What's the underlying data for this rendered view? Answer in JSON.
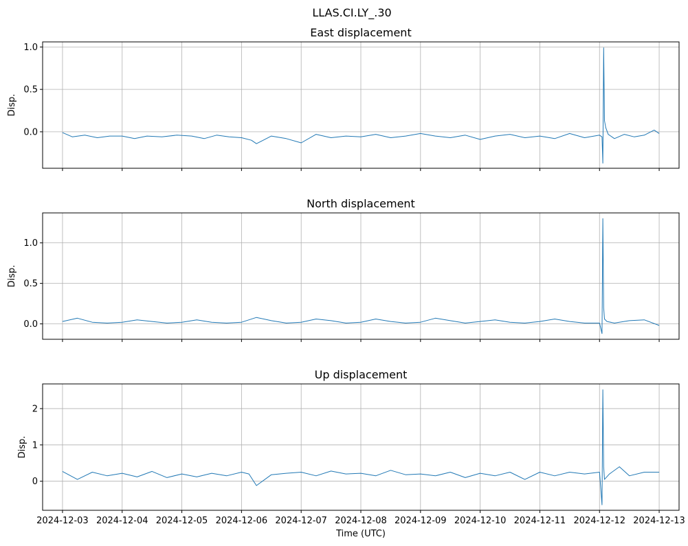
{
  "figure": {
    "title": "LLAS.CI.LY_.30"
  },
  "chart_data": [
    {
      "type": "line",
      "title": "East displacement",
      "xlabel": "",
      "ylabel": "Disp.",
      "xlim": [
        "2024-12-02T16:00",
        "2024-12-13T08:00"
      ],
      "ylim": [
        -0.43,
        1.06
      ],
      "yticks": [
        0.0,
        0.5,
        1.0
      ],
      "yticklabels": [
        "0.0",
        "0.5",
        "1.0"
      ],
      "grid": true,
      "color": "#1f77b4",
      "series": [
        {
          "x": [
            "2024-12-03T00:00",
            "2024-12-03T04:00",
            "2024-12-03T09:00",
            "2024-12-03T14:00",
            "2024-12-03T19:00",
            "2024-12-04T00:00",
            "2024-12-04T05:00",
            "2024-12-04T10:00",
            "2024-12-04T16:00",
            "2024-12-04T22:00",
            "2024-12-05T04:00",
            "2024-12-05T09:00",
            "2024-12-05T14:00",
            "2024-12-05T19:00",
            "2024-12-06T00:00",
            "2024-12-06T04:00",
            "2024-12-06T06:00",
            "2024-12-06T12:00",
            "2024-12-06T18:00",
            "2024-12-07T00:00",
            "2024-12-07T06:00",
            "2024-12-07T12:00",
            "2024-12-07T18:00",
            "2024-12-08T00:00",
            "2024-12-08T06:00",
            "2024-12-08T12:00",
            "2024-12-08T18:00",
            "2024-12-09T00:00",
            "2024-12-09T06:00",
            "2024-12-09T12:00",
            "2024-12-09T18:00",
            "2024-12-10T00:00",
            "2024-12-10T06:00",
            "2024-12-10T12:00",
            "2024-12-10T18:00",
            "2024-12-11T00:00",
            "2024-12-11T06:00",
            "2024-12-11T12:00",
            "2024-12-11T18:00",
            "2024-12-12T00:00",
            "2024-12-12T01:00",
            "2024-12-12T01:20",
            "2024-12-12T01:40",
            "2024-12-12T02:00",
            "2024-12-12T02:30",
            "2024-12-12T03:30",
            "2024-12-12T06:00",
            "2024-12-12T10:00",
            "2024-12-12T14:00",
            "2024-12-12T18:00",
            "2024-12-12T22:00",
            "2024-12-13T00:00"
          ],
          "y": [
            -0.01,
            -0.06,
            -0.04,
            -0.07,
            -0.05,
            -0.05,
            -0.08,
            -0.05,
            -0.06,
            -0.04,
            -0.05,
            -0.08,
            -0.04,
            -0.06,
            -0.07,
            -0.1,
            -0.14,
            -0.05,
            -0.08,
            -0.13,
            -0.03,
            -0.07,
            -0.05,
            -0.06,
            -0.03,
            -0.07,
            -0.05,
            -0.02,
            -0.05,
            -0.07,
            -0.04,
            -0.09,
            -0.05,
            -0.03,
            -0.07,
            -0.05,
            -0.08,
            -0.02,
            -0.07,
            -0.04,
            -0.06,
            -0.37,
            0.99,
            0.13,
            0.05,
            -0.03,
            -0.08,
            -0.03,
            -0.06,
            -0.04,
            0.02,
            -0.02
          ]
        }
      ]
    },
    {
      "type": "line",
      "title": "North displacement",
      "xlabel": "",
      "ylabel": "Disp.",
      "xlim": [
        "2024-12-02T16:00",
        "2024-12-13T08:00"
      ],
      "ylim": [
        -0.19,
        1.37
      ],
      "yticks": [
        0.0,
        0.5,
        1.0
      ],
      "yticklabels": [
        "0.0",
        "0.5",
        "1.0"
      ],
      "grid": true,
      "color": "#1f77b4",
      "series": [
        {
          "x": [
            "2024-12-03T00:00",
            "2024-12-03T06:00",
            "2024-12-03T12:00",
            "2024-12-03T18:00",
            "2024-12-04T00:00",
            "2024-12-04T06:00",
            "2024-12-04T12:00",
            "2024-12-04T18:00",
            "2024-12-05T00:00",
            "2024-12-05T06:00",
            "2024-12-05T12:00",
            "2024-12-05T18:00",
            "2024-12-06T00:00",
            "2024-12-06T06:00",
            "2024-12-06T12:00",
            "2024-12-06T18:00",
            "2024-12-07T00:00",
            "2024-12-07T06:00",
            "2024-12-07T12:00",
            "2024-12-07T18:00",
            "2024-12-08T00:00",
            "2024-12-08T06:00",
            "2024-12-08T12:00",
            "2024-12-08T18:00",
            "2024-12-09T00:00",
            "2024-12-09T06:00",
            "2024-12-09T12:00",
            "2024-12-09T18:00",
            "2024-12-10T00:00",
            "2024-12-10T06:00",
            "2024-12-10T12:00",
            "2024-12-10T18:00",
            "2024-12-11T00:00",
            "2024-12-11T06:00",
            "2024-12-11T12:00",
            "2024-12-11T18:00",
            "2024-12-12T00:00",
            "2024-12-12T01:00",
            "2024-12-12T01:20",
            "2024-12-12T01:40",
            "2024-12-12T02:00",
            "2024-12-12T03:00",
            "2024-12-12T06:00",
            "2024-12-12T12:00",
            "2024-12-12T18:00",
            "2024-12-13T00:00"
          ],
          "y": [
            0.03,
            0.07,
            0.02,
            0.01,
            0.02,
            0.05,
            0.03,
            0.01,
            0.02,
            0.05,
            0.02,
            0.01,
            0.02,
            0.08,
            0.04,
            0.01,
            0.02,
            0.06,
            0.04,
            0.01,
            0.02,
            0.06,
            0.03,
            0.01,
            0.02,
            0.07,
            0.04,
            0.01,
            0.03,
            0.05,
            0.02,
            0.01,
            0.03,
            0.06,
            0.03,
            0.01,
            0.01,
            -0.12,
            1.3,
            0.2,
            0.06,
            0.03,
            0.01,
            0.04,
            0.05,
            -0.02
          ]
        }
      ]
    },
    {
      "type": "line",
      "title": "Up displacement",
      "xlabel": "Time (UTC)",
      "ylabel": "Disp.",
      "xlim": [
        "2024-12-02T16:00",
        "2024-12-13T08:00"
      ],
      "ylim": [
        -0.8,
        2.68
      ],
      "yticks": [
        0,
        1,
        2
      ],
      "yticklabels": [
        "0",
        "1",
        "2"
      ],
      "xticks": [
        "2024-12-03",
        "2024-12-04",
        "2024-12-05",
        "2024-12-06",
        "2024-12-07",
        "2024-12-08",
        "2024-12-09",
        "2024-12-10",
        "2024-12-11",
        "2024-12-12",
        "2024-12-13"
      ],
      "grid": true,
      "color": "#1f77b4",
      "series": [
        {
          "x": [
            "2024-12-03T00:00",
            "2024-12-03T06:00",
            "2024-12-03T12:00",
            "2024-12-03T18:00",
            "2024-12-04T00:00",
            "2024-12-04T06:00",
            "2024-12-04T12:00",
            "2024-12-04T18:00",
            "2024-12-05T00:00",
            "2024-12-05T06:00",
            "2024-12-05T12:00",
            "2024-12-05T18:00",
            "2024-12-06T00:00",
            "2024-12-06T03:00",
            "2024-12-06T06:00",
            "2024-12-06T12:00",
            "2024-12-06T18:00",
            "2024-12-07T00:00",
            "2024-12-07T06:00",
            "2024-12-07T12:00",
            "2024-12-07T18:00",
            "2024-12-08T00:00",
            "2024-12-08T06:00",
            "2024-12-08T12:00",
            "2024-12-08T18:00",
            "2024-12-09T00:00",
            "2024-12-09T06:00",
            "2024-12-09T12:00",
            "2024-12-09T18:00",
            "2024-12-10T00:00",
            "2024-12-10T06:00",
            "2024-12-10T12:00",
            "2024-12-10T18:00",
            "2024-12-11T00:00",
            "2024-12-11T06:00",
            "2024-12-11T12:00",
            "2024-12-11T18:00",
            "2024-12-12T00:00",
            "2024-12-12T01:00",
            "2024-12-12T01:20",
            "2024-12-12T01:40",
            "2024-12-12T02:00",
            "2024-12-12T04:00",
            "2024-12-12T08:00",
            "2024-12-12T12:00",
            "2024-12-12T18:00",
            "2024-12-13T00:00"
          ],
          "y": [
            0.27,
            0.05,
            0.25,
            0.15,
            0.22,
            0.12,
            0.27,
            0.1,
            0.2,
            0.12,
            0.22,
            0.15,
            0.25,
            0.2,
            -0.12,
            0.18,
            0.22,
            0.25,
            0.15,
            0.28,
            0.2,
            0.22,
            0.15,
            0.3,
            0.18,
            0.2,
            0.15,
            0.25,
            0.1,
            0.22,
            0.15,
            0.25,
            0.05,
            0.25,
            0.15,
            0.25,
            0.2,
            0.25,
            -0.65,
            2.52,
            0.4,
            0.05,
            0.2,
            0.4,
            0.15,
            0.25,
            0.25
          ]
        }
      ]
    }
  ]
}
